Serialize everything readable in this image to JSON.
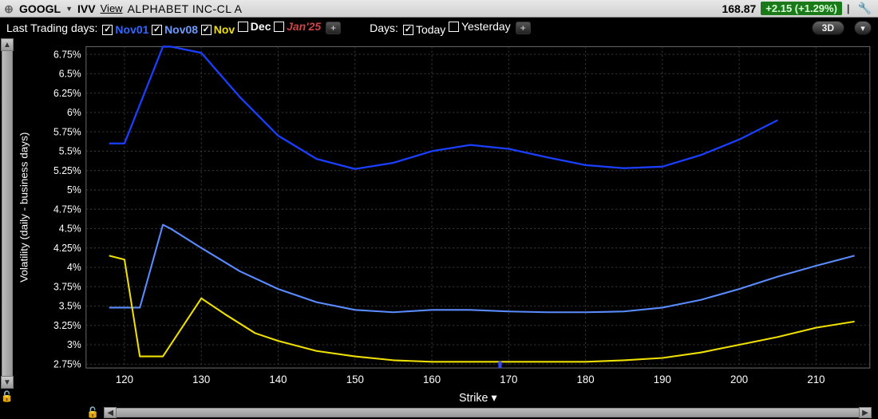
{
  "header": {
    "ticker": "GOOGL",
    "secondary": "IVV",
    "view_label": "View",
    "company": "ALPHABET INC-CL A",
    "price": "168.87",
    "change": "+2.15 (+1.29%)"
  },
  "controls": {
    "series_label": "Last Trading days:",
    "expiries": [
      {
        "label": "Nov01",
        "checked": true,
        "cls": "blue"
      },
      {
        "label": "Nov08",
        "checked": true,
        "cls": "lblue"
      },
      {
        "label": "Nov",
        "checked": true,
        "cls": "yellow"
      },
      {
        "label": "Dec",
        "checked": false,
        "cls": "white"
      },
      {
        "label": "Jan'25",
        "checked": false,
        "cls": "red"
      }
    ],
    "days_label": "Days:",
    "day_options": [
      {
        "label": "Today",
        "checked": true
      },
      {
        "label": "Yesterday",
        "checked": false
      }
    ],
    "button_3d": "3D"
  },
  "chart": {
    "bg_color": "#000000",
    "grid_color": "#3a3a3a",
    "axis_text_color": "#ffffff",
    "axis_font_size": 12,
    "x_axis": {
      "label": "Strike",
      "min": 115,
      "max": 217,
      "ticks": [
        120,
        130,
        140,
        150,
        160,
        170,
        180,
        190,
        200,
        210
      ]
    },
    "y_axis": {
      "label": "Volatility (daily - business days)",
      "min": 2.7,
      "max": 6.85,
      "ticks": [
        2.75,
        3,
        3.25,
        3.5,
        3.75,
        4,
        4.25,
        4.5,
        4.75,
        5,
        5.25,
        5.5,
        5.75,
        6,
        6.25,
        6.5,
        6.75
      ],
      "tick_suffix": "%"
    },
    "marker_x": 168.87,
    "series": [
      {
        "name": "Nov01",
        "color": "#1a3fff",
        "width": 2.2,
        "points": [
          [
            118,
            5.6
          ],
          [
            120,
            5.6
          ],
          [
            125,
            6.85
          ],
          [
            126,
            6.85
          ],
          [
            130,
            6.77
          ],
          [
            135,
            6.2
          ],
          [
            140,
            5.7
          ],
          [
            145,
            5.4
          ],
          [
            150,
            5.27
          ],
          [
            155,
            5.35
          ],
          [
            160,
            5.5
          ],
          [
            165,
            5.58
          ],
          [
            170,
            5.53
          ],
          [
            175,
            5.42
          ],
          [
            180,
            5.32
          ],
          [
            185,
            5.28
          ],
          [
            190,
            5.3
          ],
          [
            195,
            5.45
          ],
          [
            200,
            5.65
          ],
          [
            205,
            5.9
          ]
        ]
      },
      {
        "name": "Nov08",
        "color": "#5a8cff",
        "width": 2,
        "points": [
          [
            118,
            3.48
          ],
          [
            122,
            3.48
          ],
          [
            125,
            4.55
          ],
          [
            126,
            4.5
          ],
          [
            130,
            4.25
          ],
          [
            135,
            3.95
          ],
          [
            140,
            3.72
          ],
          [
            145,
            3.55
          ],
          [
            150,
            3.45
          ],
          [
            155,
            3.42
          ],
          [
            160,
            3.45
          ],
          [
            165,
            3.45
          ],
          [
            170,
            3.43
          ],
          [
            175,
            3.42
          ],
          [
            180,
            3.42
          ],
          [
            185,
            3.43
          ],
          [
            190,
            3.48
          ],
          [
            195,
            3.58
          ],
          [
            200,
            3.72
          ],
          [
            205,
            3.88
          ],
          [
            210,
            4.02
          ],
          [
            215,
            4.15
          ]
        ]
      },
      {
        "name": "Nov",
        "color": "#f0e000",
        "width": 2,
        "points": [
          [
            118,
            4.15
          ],
          [
            120,
            4.1
          ],
          [
            122,
            2.85
          ],
          [
            125,
            2.85
          ],
          [
            130,
            3.6
          ],
          [
            133,
            3.4
          ],
          [
            137,
            3.15
          ],
          [
            140,
            3.05
          ],
          [
            145,
            2.92
          ],
          [
            150,
            2.85
          ],
          [
            155,
            2.8
          ],
          [
            160,
            2.78
          ],
          [
            165,
            2.78
          ],
          [
            170,
            2.78
          ],
          [
            175,
            2.78
          ],
          [
            180,
            2.78
          ],
          [
            185,
            2.8
          ],
          [
            190,
            2.83
          ],
          [
            195,
            2.9
          ],
          [
            200,
            3.0
          ],
          [
            205,
            3.1
          ],
          [
            210,
            3.22
          ],
          [
            215,
            3.3
          ]
        ]
      }
    ]
  }
}
